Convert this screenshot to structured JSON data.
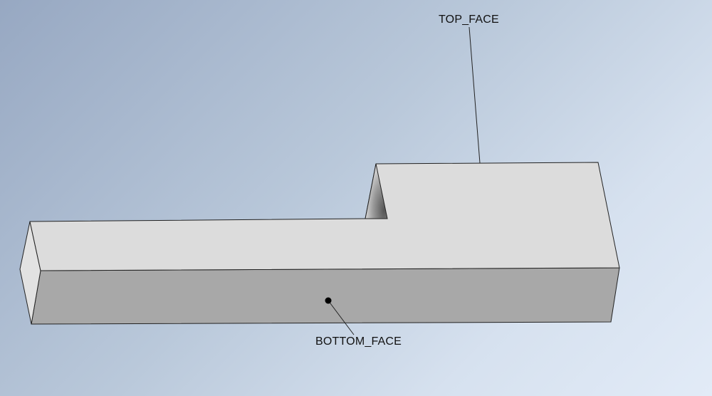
{
  "viewport": {
    "background_top_left": "#97a8c2",
    "background_bottom_right": "#e2ebf7"
  },
  "model": {
    "top_face_color": "#dcdcdc",
    "front_face_color": "#a8a8a8",
    "end_face_color": "#e2e2e2",
    "edge_color": "#222222"
  },
  "annotations": {
    "top_face_label": "TOP_FACE",
    "bottom_face_label": "BOTTOM_FACE"
  }
}
